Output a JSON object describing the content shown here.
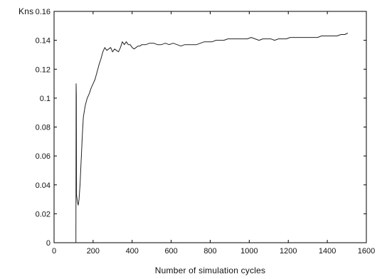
{
  "chart_data": {
    "type": "line",
    "title": "",
    "xlabel": "Number of simulation cycles",
    "ylabel": "Kns",
    "xlim": [
      0,
      1600
    ],
    "ylim": [
      0,
      0.16
    ],
    "x_ticks": [
      0,
      200,
      400,
      600,
      800,
      1000,
      1200,
      1400,
      1600
    ],
    "y_ticks": [
      0,
      0.02,
      0.04,
      0.06,
      0.08,
      0.1,
      0.12,
      0.14,
      0.16
    ],
    "x_tick_labels": [
      "0",
      "200",
      "400",
      "600",
      "800",
      "1000",
      "1200",
      "1400",
      "1600"
    ],
    "y_tick_labels": [
      "0",
      "0.02",
      "0.04",
      "0.06",
      "0.08",
      "0.1",
      "0.12",
      "0.14",
      "0.16"
    ],
    "grid": false,
    "legend": false,
    "colors": {
      "line": "#222222",
      "axis": "#000000",
      "text": "#111111",
      "background": "#ffffff"
    },
    "series": [
      {
        "x": [
          112,
          113,
          114,
          115,
          118,
          120,
          124,
          128,
          133,
          138,
          145,
          150,
          160,
          170,
          180,
          190,
          200,
          210,
          220,
          230,
          240,
          250,
          260,
          270,
          280,
          290,
          300,
          310,
          320,
          330,
          340,
          350,
          360,
          370,
          380,
          390,
          400,
          410,
          420,
          430,
          440,
          450,
          470,
          490,
          510,
          530,
          550,
          570,
          590,
          610,
          630,
          650,
          670,
          690,
          710,
          730,
          750,
          770,
          790,
          810,
          830,
          850,
          870,
          890,
          910,
          930,
          950,
          970,
          990,
          1010,
          1030,
          1050,
          1070,
          1090,
          1110,
          1130,
          1150,
          1170,
          1190,
          1210,
          1230,
          1250,
          1270,
          1290,
          1310,
          1330,
          1350,
          1370,
          1390,
          1410,
          1430,
          1450,
          1470,
          1490,
          1505
        ],
        "y": [
          0.0,
          0.11,
          0.102,
          0.033,
          0.03,
          0.028,
          0.026,
          0.03,
          0.04,
          0.055,
          0.075,
          0.087,
          0.095,
          0.1,
          0.103,
          0.107,
          0.11,
          0.113,
          0.118,
          0.123,
          0.127,
          0.132,
          0.135,
          0.133,
          0.134,
          0.135,
          0.132,
          0.134,
          0.133,
          0.132,
          0.135,
          0.139,
          0.137,
          0.139,
          0.137,
          0.137,
          0.135,
          0.134,
          0.135,
          0.136,
          0.136,
          0.137,
          0.137,
          0.138,
          0.138,
          0.137,
          0.137,
          0.138,
          0.137,
          0.138,
          0.137,
          0.136,
          0.137,
          0.137,
          0.137,
          0.137,
          0.138,
          0.139,
          0.139,
          0.139,
          0.14,
          0.14,
          0.14,
          0.141,
          0.141,
          0.141,
          0.141,
          0.141,
          0.141,
          0.142,
          0.141,
          0.14,
          0.141,
          0.141,
          0.141,
          0.14,
          0.141,
          0.141,
          0.141,
          0.142,
          0.142,
          0.142,
          0.142,
          0.142,
          0.142,
          0.142,
          0.142,
          0.143,
          0.143,
          0.143,
          0.143,
          0.143,
          0.144,
          0.144,
          0.145
        ]
      }
    ]
  }
}
